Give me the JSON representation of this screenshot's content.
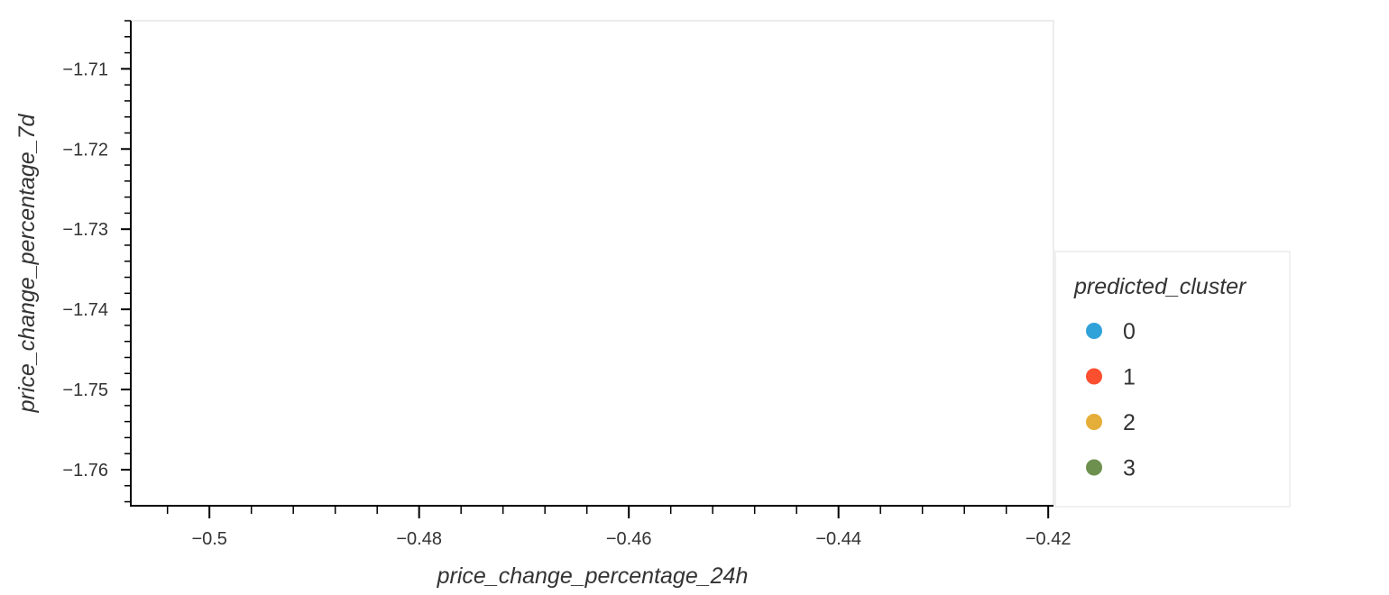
{
  "chart_data": {
    "type": "scatter",
    "xlabel": "price_change_percentage_24h",
    "ylabel": "price_change_percentage_7d",
    "xlim": [
      -0.5075,
      -0.4195
    ],
    "ylim": [
      -1.7645,
      -1.704
    ],
    "x_major_ticks": [
      {
        "value": -0.5,
        "label": "−0.5"
      },
      {
        "value": -0.48,
        "label": "−0.48"
      },
      {
        "value": -0.46,
        "label": "−0.46"
      },
      {
        "value": -0.44,
        "label": "−0.44"
      },
      {
        "value": -0.42,
        "label": "−0.42"
      }
    ],
    "y_major_ticks": [
      {
        "value": -1.71,
        "label": "−1.71"
      },
      {
        "value": -1.72,
        "label": "−1.72"
      },
      {
        "value": -1.73,
        "label": "−1.73"
      },
      {
        "value": -1.74,
        "label": "−1.74"
      },
      {
        "value": -1.75,
        "label": "−1.75"
      },
      {
        "value": -1.76,
        "label": "−1.76"
      }
    ],
    "x_minor_step": 0.004,
    "y_minor_step": 0.002,
    "grid": false,
    "series": [],
    "legend": {
      "title": "predicted_cluster",
      "placement": "right",
      "entries": [
        {
          "label": "0",
          "color": "#30a2da"
        },
        {
          "label": "1",
          "color": "#fc4f30"
        },
        {
          "label": "2",
          "color": "#e5ae38"
        },
        {
          "label": "3",
          "color": "#6d904f"
        }
      ]
    }
  }
}
